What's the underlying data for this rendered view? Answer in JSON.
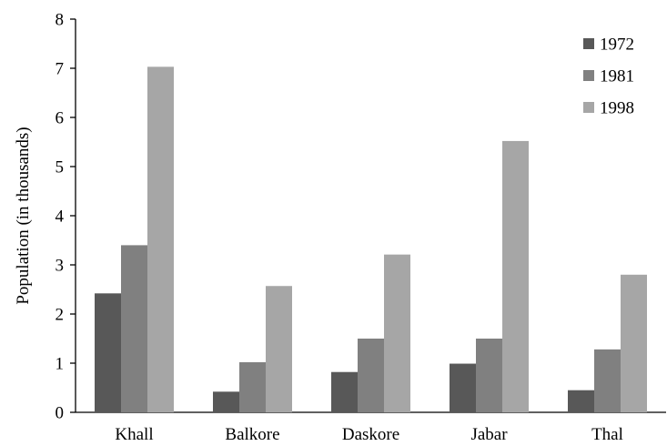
{
  "chart_data": {
    "type": "bar",
    "title": "",
    "xlabel": "",
    "ylabel": "Population (in thousands)",
    "ylim": [
      0,
      8
    ],
    "yticks": [
      0,
      1,
      2,
      3,
      4,
      5,
      6,
      7,
      8
    ],
    "grid": false,
    "legend_position": "top-right",
    "categories": [
      "Khall",
      "Balkore",
      "Daskore",
      "Jabar",
      "Thal"
    ],
    "series": [
      {
        "name": "1972",
        "color": "#585858",
        "values": [
          2.42,
          0.42,
          0.82,
          0.99,
          0.45
        ]
      },
      {
        "name": "1981",
        "color": "#808080",
        "values": [
          3.4,
          1.02,
          1.5,
          1.5,
          1.28
        ]
      },
      {
        "name": "1998",
        "color": "#a6a6a6",
        "values": [
          7.03,
          2.57,
          3.21,
          5.52,
          2.8
        ]
      }
    ]
  }
}
